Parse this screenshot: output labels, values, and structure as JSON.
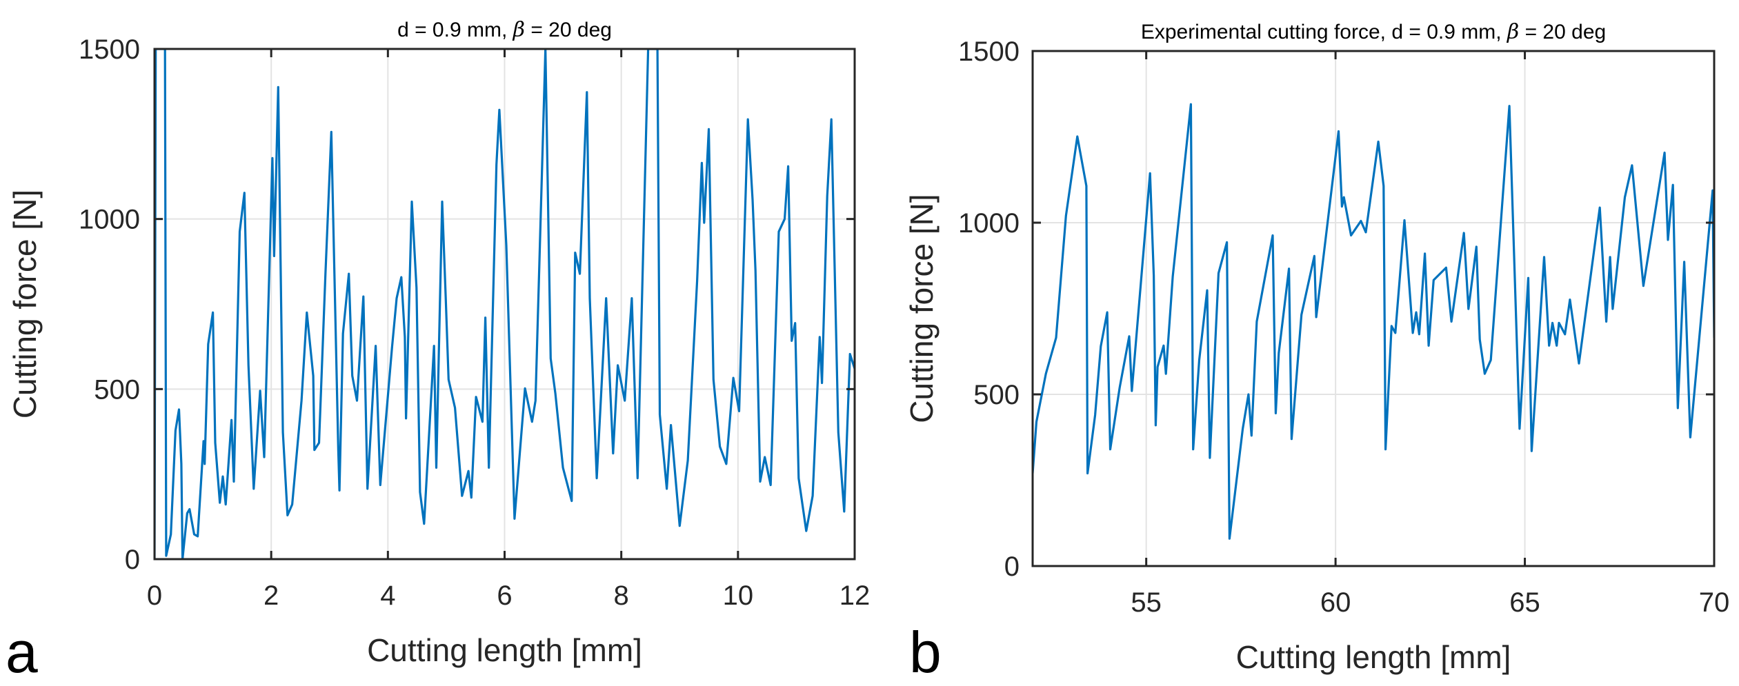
{
  "chart_data": [
    {
      "type": "line",
      "panel_label": "a",
      "title_prefix": "d = 0.9 mm, ",
      "title_symbol": "β",
      "title_suffix": " = 20 deg",
      "xlabel": "Cutting length [mm]",
      "ylabel": "Cutting force [N]",
      "xlim": [
        0,
        12
      ],
      "ylim": [
        0,
        1500
      ],
      "xticks": [
        0,
        2,
        4,
        6,
        8,
        10,
        12
      ],
      "yticks": [
        0,
        500,
        1000,
        1500
      ],
      "grid": true,
      "color": "#0072BD",
      "series": [
        {
          "name": "Cutting force",
          "points": [
            [
              0,
              0
            ],
            [
              0.02,
              1500
            ],
            [
              0.18,
              1500
            ],
            [
              0.2,
              10
            ],
            [
              0.28,
              73
            ],
            [
              0.36,
              378
            ],
            [
              0.42,
              440
            ],
            [
              0.46,
              280
            ],
            [
              0.48,
              0
            ],
            [
              0.56,
              135
            ],
            [
              0.6,
              147
            ],
            [
              0.68,
              73
            ],
            [
              0.74,
              67
            ],
            [
              0.84,
              347
            ],
            [
              0.86,
              280
            ],
            [
              0.92,
              632
            ],
            [
              1.0,
              725
            ],
            [
              1.04,
              342
            ],
            [
              1.12,
              166
            ],
            [
              1.17,
              243
            ],
            [
              1.22,
              161
            ],
            [
              1.32,
              409
            ],
            [
              1.36,
              228
            ],
            [
              1.46,
              963
            ],
            [
              1.54,
              1077
            ],
            [
              1.61,
              570
            ],
            [
              1.7,
              207
            ],
            [
              1.81,
              495
            ],
            [
              1.88,
              300
            ],
            [
              2.02,
              1179
            ],
            [
              2.05,
              891
            ],
            [
              2.12,
              1388
            ],
            [
              2.2,
              373
            ],
            [
              2.28,
              129
            ],
            [
              2.36,
              161
            ],
            [
              2.52,
              466
            ],
            [
              2.61,
              725
            ],
            [
              2.72,
              539
            ],
            [
              2.74,
              321
            ],
            [
              2.82,
              342
            ],
            [
              2.93,
              839
            ],
            [
              3.03,
              1256
            ],
            [
              3.15,
              321
            ],
            [
              3.17,
              202
            ],
            [
              3.23,
              663
            ],
            [
              3.33,
              839
            ],
            [
              3.39,
              539
            ],
            [
              3.47,
              466
            ],
            [
              3.58,
              772
            ],
            [
              3.65,
              207
            ],
            [
              3.79,
              627
            ],
            [
              3.87,
              218
            ],
            [
              4.07,
              622
            ],
            [
              4.15,
              767
            ],
            [
              4.23,
              829
            ],
            [
              4.29,
              653
            ],
            [
              4.31,
              414
            ],
            [
              4.41,
              1051
            ],
            [
              4.49,
              798
            ],
            [
              4.55,
              197
            ],
            [
              4.62,
              104
            ],
            [
              4.79,
              627
            ],
            [
              4.83,
              269
            ],
            [
              4.93,
              1051
            ],
            [
              4.99,
              772
            ],
            [
              5.04,
              528
            ],
            [
              5.15,
              445
            ],
            [
              5.27,
              186
            ],
            [
              5.38,
              259
            ],
            [
              5.43,
              181
            ],
            [
              5.51,
              477
            ],
            [
              5.62,
              404
            ],
            [
              5.67,
              710
            ],
            [
              5.73,
              269
            ],
            [
              5.86,
              1160
            ],
            [
              5.91,
              1321
            ],
            [
              5.97,
              1119
            ],
            [
              6.03,
              922
            ],
            [
              6.17,
              119
            ],
            [
              6.35,
              502
            ],
            [
              6.47,
              404
            ],
            [
              6.53,
              466
            ],
            [
              6.7,
              1500
            ],
            [
              6.79,
              590
            ],
            [
              6.87,
              487
            ],
            [
              7.0,
              269
            ],
            [
              7.15,
              171
            ],
            [
              7.21,
              901
            ],
            [
              7.29,
              839
            ],
            [
              7.41,
              1373
            ],
            [
              7.46,
              767
            ],
            [
              7.58,
              238
            ],
            [
              7.74,
              767
            ],
            [
              7.86,
              311
            ],
            [
              7.94,
              570
            ],
            [
              8.06,
              466
            ],
            [
              8.18,
              767
            ],
            [
              8.28,
              238
            ],
            [
              8.46,
              1500
            ],
            [
              8.62,
              1500
            ],
            [
              8.66,
              425
            ],
            [
              8.78,
              207
            ],
            [
              8.85,
              394
            ],
            [
              9.0,
              98
            ],
            [
              9.14,
              290
            ],
            [
              9.3,
              818
            ],
            [
              9.38,
              1165
            ],
            [
              9.42,
              989
            ],
            [
              9.5,
              1264
            ],
            [
              9.58,
              528
            ],
            [
              9.69,
              331
            ],
            [
              9.8,
              280
            ],
            [
              9.92,
              533
            ],
            [
              10.02,
              435
            ],
            [
              10.17,
              1293
            ],
            [
              10.25,
              1057
            ],
            [
              10.3,
              849
            ],
            [
              10.38,
              228
            ],
            [
              10.46,
              300
            ],
            [
              10.56,
              218
            ],
            [
              10.7,
              963
            ],
            [
              10.8,
              1000
            ],
            [
              10.86,
              1155
            ],
            [
              10.92,
              642
            ],
            [
              10.98,
              694
            ],
            [
              11.04,
              238
            ],
            [
              11.17,
              83
            ],
            [
              11.28,
              186
            ],
            [
              11.4,
              653
            ],
            [
              11.44,
              518
            ],
            [
              11.53,
              1067
            ],
            [
              11.6,
              1293
            ],
            [
              11.72,
              373
            ],
            [
              11.82,
              140
            ],
            [
              11.92,
              603
            ],
            [
              12.0,
              560
            ]
          ]
        }
      ]
    },
    {
      "type": "line",
      "panel_label": "b",
      "title_prefix": "Experimental cutting force, d = 0.9 mm, ",
      "title_symbol": "β",
      "title_suffix": " = 20 deg",
      "xlabel": "Cutting length [mm]",
      "ylabel": "Cutting force [N]",
      "xlim": [
        52,
        70
      ],
      "ylim": [
        0,
        1500
      ],
      "xticks": [
        55,
        60,
        65,
        70
      ],
      "yticks": [
        0,
        500,
        1000,
        1500
      ],
      "grid": true,
      "color": "#0072BD",
      "series": [
        {
          "name": "Experimental cutting force",
          "points": [
            [
              52,
              270
            ],
            [
              52.1,
              420
            ],
            [
              52.35,
              560
            ],
            [
              52.62,
              665
            ],
            [
              52.88,
              1020
            ],
            [
              53.18,
              1251
            ],
            [
              53.42,
              1107
            ],
            [
              53.45,
              270
            ],
            [
              53.65,
              440
            ],
            [
              53.8,
              640
            ],
            [
              53.97,
              739
            ],
            [
              54.05,
              340
            ],
            [
              54.3,
              520
            ],
            [
              54.55,
              669
            ],
            [
              54.62,
              510
            ],
            [
              55.1,
              1144
            ],
            [
              55.2,
              846
            ],
            [
              55.25,
              410
            ],
            [
              55.3,
              580
            ],
            [
              55.46,
              642
            ],
            [
              55.52,
              560
            ],
            [
              55.7,
              843
            ],
            [
              56.18,
              1345
            ],
            [
              56.24,
              340
            ],
            [
              56.4,
              600
            ],
            [
              56.61,
              803
            ],
            [
              56.68,
              315
            ],
            [
              56.91,
              853
            ],
            [
              57.13,
              943
            ],
            [
              57.2,
              80
            ],
            [
              57.55,
              400
            ],
            [
              57.7,
              500
            ],
            [
              57.78,
              380
            ],
            [
              57.92,
              712
            ],
            [
              58.34,
              963
            ],
            [
              58.42,
              445
            ],
            [
              58.5,
              620
            ],
            [
              58.77,
              866
            ],
            [
              58.84,
              370
            ],
            [
              59.1,
              732
            ],
            [
              59.44,
              903
            ],
            [
              59.49,
              725
            ],
            [
              60.08,
              1266
            ],
            [
              60.17,
              1047
            ],
            [
              60.22,
              1074
            ],
            [
              60.41,
              963
            ],
            [
              60.67,
              1005
            ],
            [
              60.8,
              972
            ],
            [
              61.13,
              1236
            ],
            [
              61.27,
              1107
            ],
            [
              61.32,
              340
            ],
            [
              61.48,
              699
            ],
            [
              61.58,
              679
            ],
            [
              61.82,
              1007
            ],
            [
              62.04,
              679
            ],
            [
              62.13,
              739
            ],
            [
              62.21,
              675
            ],
            [
              62.36,
              910
            ],
            [
              62.46,
              642
            ],
            [
              62.59,
              833
            ],
            [
              62.92,
              869
            ],
            [
              63.06,
              712
            ],
            [
              63.39,
              970
            ],
            [
              63.51,
              749
            ],
            [
              63.72,
              930
            ],
            [
              63.81,
              660
            ],
            [
              63.94,
              560
            ],
            [
              64.1,
              600
            ],
            [
              64.59,
              1340
            ],
            [
              64.86,
              400
            ],
            [
              65.09,
              839
            ],
            [
              65.18,
              335
            ],
            [
              65.51,
              900
            ],
            [
              65.64,
              642
            ],
            [
              65.73,
              708
            ],
            [
              65.84,
              642
            ],
            [
              65.9,
              708
            ],
            [
              66.06,
              675
            ],
            [
              66.19,
              776
            ],
            [
              66.43,
              590
            ],
            [
              66.98,
              1044
            ],
            [
              67.15,
              712
            ],
            [
              67.25,
              900
            ],
            [
              67.32,
              749
            ],
            [
              67.64,
              1074
            ],
            [
              67.83,
              1167
            ],
            [
              68.13,
              816
            ],
            [
              68.69,
              1204
            ],
            [
              68.78,
              950
            ],
            [
              68.91,
              1110
            ],
            [
              69.04,
              460
            ],
            [
              69.21,
              886
            ],
            [
              69.37,
              375
            ],
            [
              69.96,
              1094
            ],
            [
              70,
              665
            ]
          ]
        }
      ]
    }
  ]
}
